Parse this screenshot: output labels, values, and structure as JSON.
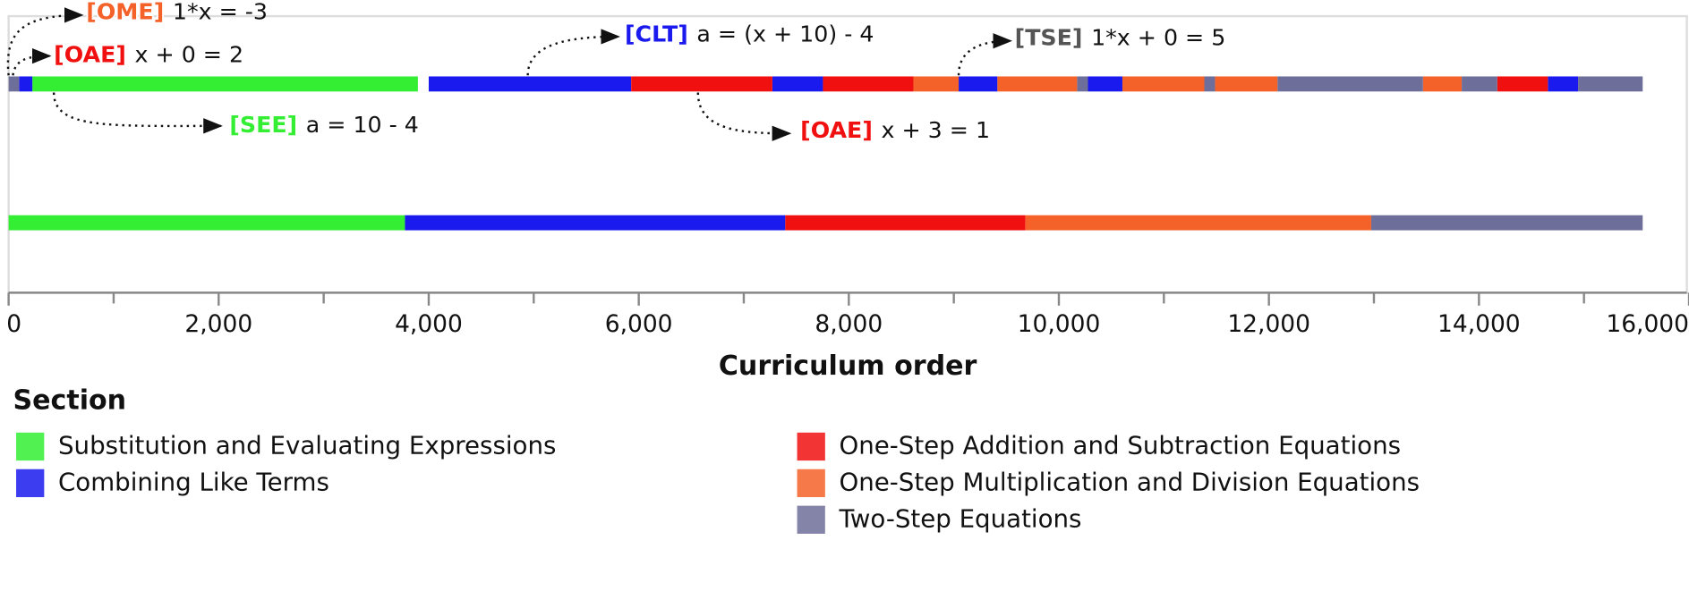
{
  "chart_data": {
    "type": "timeline",
    "x_label": "Curriculum order",
    "xlim": [
      0,
      16000
    ],
    "xticks": [
      {
        "value": 0,
        "label": "0"
      },
      {
        "value": 2000,
        "label": "2,000"
      },
      {
        "value": 4000,
        "label": "4,000"
      },
      {
        "value": 6000,
        "label": "6,000"
      },
      {
        "value": 8000,
        "label": "8,000"
      },
      {
        "value": 10000,
        "label": "10,000"
      },
      {
        "value": 12000,
        "label": "12,000"
      },
      {
        "value": 14000,
        "label": "14,000"
      },
      {
        "value": 16000,
        "label": "16,000"
      }
    ],
    "minor_xticks": [
      1000,
      3000,
      5000,
      7000,
      9000,
      11000,
      13000,
      15000
    ],
    "legend_title": "Section",
    "series": [
      {
        "name": "Substitution and Evaluating Expressions",
        "color": "#33ee33",
        "curriculum_segments": [
          [
            226,
            3897
          ]
        ],
        "baseline_segment": [
          0,
          3774
        ]
      },
      {
        "name": "Combining Like Terms",
        "color": "#1a1aee",
        "curriculum_segments": [
          [
            100,
            226
          ],
          [
            4000,
            5928
          ],
          [
            7272,
            7754
          ],
          [
            9046,
            9415
          ],
          [
            10277,
            10605
          ],
          [
            14656,
            14944
          ]
        ],
        "baseline_segment": [
          3774,
          7395
        ]
      },
      {
        "name": "One-Step Addition and Subtraction Equations",
        "color": "#f01010",
        "curriculum_segments": [
          [
            5928,
            7272
          ],
          [
            7754,
            8615
          ],
          [
            14174,
            14656
          ]
        ],
        "baseline_segment": [
          7395,
          9682
        ]
      },
      {
        "name": "One-Step Multiplication and Division Equations",
        "color": "#f4622a",
        "curriculum_segments": [
          [
            8615,
            9046
          ],
          [
            9415,
            10174
          ],
          [
            10605,
            11385
          ],
          [
            11487,
            12082
          ],
          [
            13467,
            13836
          ]
        ],
        "baseline_segment": [
          9682,
          12974
        ]
      },
      {
        "name": "Two-Step Equations",
        "color": "#6e6e9a",
        "curriculum_segments": [
          [
            0,
            100
          ],
          [
            10174,
            10277
          ],
          [
            11385,
            11487
          ],
          [
            12082,
            13467
          ],
          [
            13836,
            14174
          ],
          [
            14944,
            15559
          ]
        ],
        "baseline_segment": [
          12974,
          15559
        ]
      }
    ],
    "annotations": [
      {
        "tag": "[OME]",
        "text": "1*x = -3",
        "color": "#f4622a"
      },
      {
        "tag": "[OAE]",
        "text": "x + 0 = 2",
        "color": "#f01010"
      },
      {
        "tag": "[SEE]",
        "text": "a = 10 - 4",
        "color": "#33ee33"
      },
      {
        "tag": "[CLT]",
        "text": "a = (x + 10) - 4",
        "color": "#1a1aee"
      },
      {
        "tag": "[OAE]",
        "text": "x + 3 = 1",
        "color": "#f01010"
      },
      {
        "tag": "[TSE]",
        "text": "1*x + 0 = 5",
        "color": "#555555"
      }
    ]
  }
}
